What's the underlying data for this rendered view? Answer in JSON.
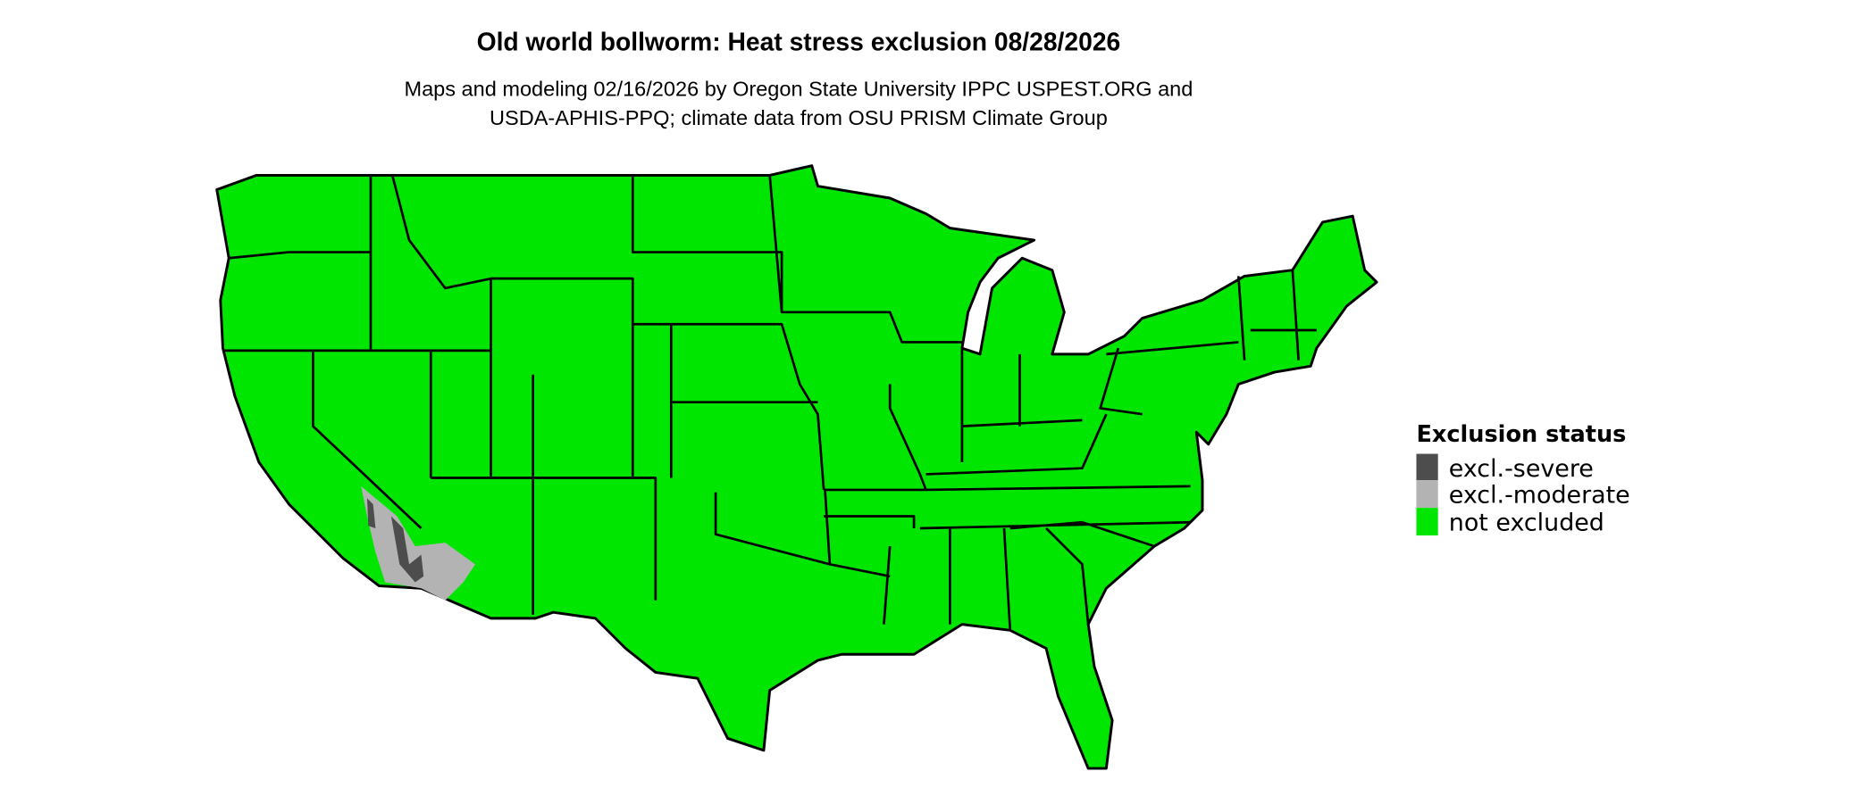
{
  "title": "Old world bollworm: Heat stress exclusion 08/28/2026",
  "subtitle_lines": [
    "Maps and modeling 02/16/2026 by Oregon State University IPPC USPEST.ORG and",
    "USDA-APHIS-PPQ; climate data from OSU PRISM Climate Group"
  ],
  "legend": {
    "title": "Exclusion status",
    "items": [
      {
        "label": "excl.-severe",
        "color": "#4d4d4d"
      },
      {
        "label": "excl.-moderate",
        "color": "#b3b3b3"
      },
      {
        "label": "not excluded",
        "color": "#00e600"
      }
    ]
  }
}
